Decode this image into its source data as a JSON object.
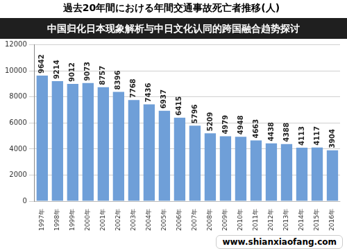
{
  "chart_data": {
    "type": "bar",
    "title": "過去20年間における年間交通事故死亡者推移(人)",
    "annotations": [
      "中国归化日本现象解析与中日文化认同的跨国融合趋势探讨",
      "www.shianxiaofang.com"
    ],
    "categories": [
      "1997年",
      "1998年",
      "1999年",
      "2000年",
      "2001年",
      "2002年",
      "2003年",
      "2004年",
      "2005年",
      "2006年",
      "2007年",
      "2008年",
      "2009年",
      "2010年",
      "2011年",
      "2012年",
      "2013年",
      "2014年",
      "2015年",
      "2016年"
    ],
    "values": [
      9642,
      9214,
      9012,
      9073,
      8757,
      8396,
      7768,
      7436,
      6937,
      6415,
      5796,
      5209,
      4979,
      4948,
      4663,
      4438,
      4388,
      4113,
      4117,
      3904
    ],
    "color": "#6f9fd8",
    "ylim": [
      0,
      12000
    ],
    "yticks": [
      0,
      2000,
      4000,
      6000,
      8000,
      10000,
      12000
    ],
    "grid": true,
    "data_labels": true
  }
}
